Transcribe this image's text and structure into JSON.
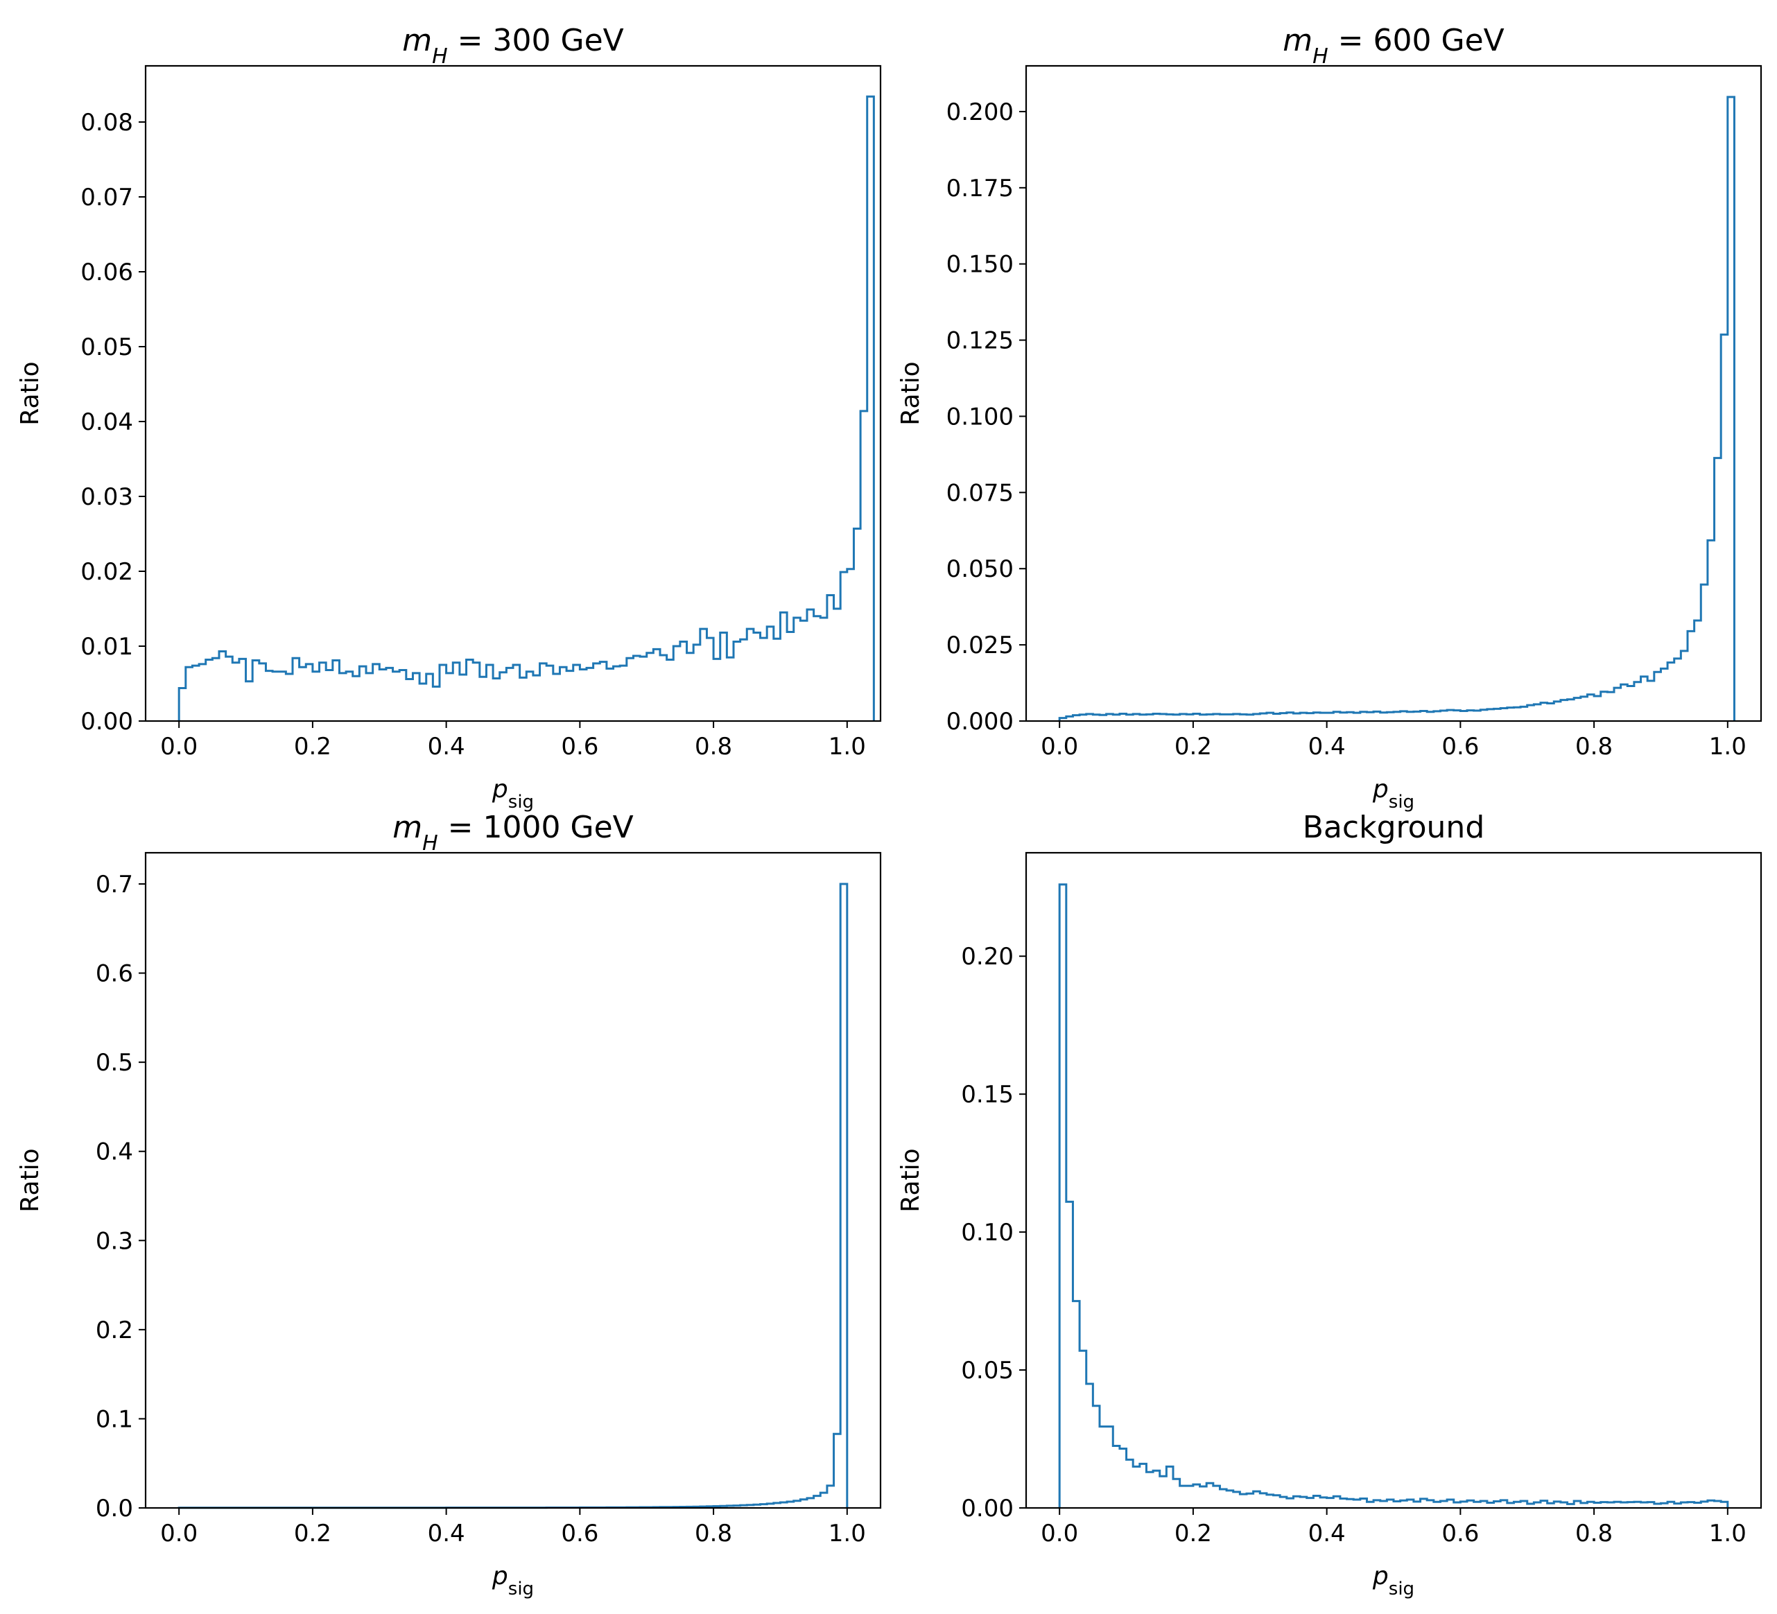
{
  "colors": {
    "series": "#1f77b4"
  },
  "chart_data": [
    {
      "type": "histogram",
      "title_prefix": "m",
      "title_subscript": "H",
      "title_suffix": " =  300 GeV",
      "xlabel_main": "p",
      "xlabel_sub": "sig",
      "ylabel": "Ratio",
      "xlim": [
        -0.05,
        1.05
      ],
      "ylim": [
        0,
        0.0875
      ],
      "xticks": [
        "0.0",
        "0.2",
        "0.4",
        "0.6",
        "0.8",
        "1.0"
      ],
      "yticks": [
        "0.00",
        "0.01",
        "0.02",
        "0.03",
        "0.04",
        "0.05",
        "0.06",
        "0.07",
        "0.08"
      ],
      "bin_start": 0.0,
      "bin_width": 0.01,
      "values": [
        0.0044,
        0.0072,
        0.0074,
        0.0076,
        0.0082,
        0.0084,
        0.0093,
        0.0086,
        0.0078,
        0.0083,
        0.0053,
        0.0081,
        0.0077,
        0.0067,
        0.0066,
        0.0066,
        0.0063,
        0.0084,
        0.0072,
        0.0076,
        0.0066,
        0.0078,
        0.0068,
        0.0081,
        0.0064,
        0.0066,
        0.006,
        0.0073,
        0.0064,
        0.0076,
        0.0069,
        0.0071,
        0.0066,
        0.0068,
        0.0056,
        0.0064,
        0.005,
        0.0063,
        0.0046,
        0.0075,
        0.0064,
        0.0078,
        0.0062,
        0.0082,
        0.0078,
        0.0059,
        0.0075,
        0.0057,
        0.0065,
        0.0071,
        0.0075,
        0.0058,
        0.0066,
        0.0061,
        0.0077,
        0.0074,
        0.0063,
        0.0072,
        0.0067,
        0.0075,
        0.0069,
        0.0071,
        0.0077,
        0.0079,
        0.007,
        0.0073,
        0.0074,
        0.0084,
        0.0087,
        0.0086,
        0.0091,
        0.0096,
        0.0088,
        0.0082,
        0.01,
        0.0106,
        0.0091,
        0.0102,
        0.0123,
        0.0111,
        0.0083,
        0.0118,
        0.0085,
        0.0106,
        0.0109,
        0.0123,
        0.0118,
        0.0111,
        0.0126,
        0.011,
        0.0145,
        0.0119,
        0.0138,
        0.0134,
        0.0149,
        0.014,
        0.0138,
        0.0168,
        0.015,
        0.0199,
        0.0203,
        0.0257,
        0.0414,
        0.0834
      ]
    },
    {
      "type": "histogram",
      "title_prefix": "m",
      "title_subscript": "H",
      "title_suffix": " =  600 GeV",
      "xlabel_main": "p",
      "xlabel_sub": "sig",
      "ylabel": "Ratio",
      "xlim": [
        -0.05,
        1.05
      ],
      "ylim": [
        0,
        0.215
      ],
      "xticks": [
        "0.0",
        "0.2",
        "0.4",
        "0.6",
        "0.8",
        "1.0"
      ],
      "yticks": [
        "0.000",
        "0.025",
        "0.050",
        "0.075",
        "0.100",
        "0.125",
        "0.150",
        "0.175",
        "0.200"
      ],
      "bin_start": 0.0,
      "bin_width": 0.01,
      "values": [
        0.001,
        0.0015,
        0.0019,
        0.0021,
        0.0023,
        0.0021,
        0.002,
        0.0023,
        0.0021,
        0.0024,
        0.0021,
        0.0023,
        0.0021,
        0.0022,
        0.0024,
        0.0023,
        0.0022,
        0.0021,
        0.0023,
        0.0022,
        0.0024,
        0.0021,
        0.0022,
        0.0023,
        0.0022,
        0.0022,
        0.0023,
        0.0022,
        0.0021,
        0.0023,
        0.0025,
        0.0027,
        0.0024,
        0.0026,
        0.0028,
        0.0025,
        0.0027,
        0.0026,
        0.0028,
        0.0027,
        0.0027,
        0.003,
        0.0028,
        0.0029,
        0.0027,
        0.003,
        0.0029,
        0.0031,
        0.0028,
        0.0029,
        0.003,
        0.0032,
        0.003,
        0.0031,
        0.0033,
        0.003,
        0.0032,
        0.0034,
        0.0036,
        0.0035,
        0.0033,
        0.0035,
        0.0034,
        0.0037,
        0.0039,
        0.004,
        0.0042,
        0.0044,
        0.0045,
        0.0047,
        0.0052,
        0.0055,
        0.006,
        0.0058,
        0.0064,
        0.0069,
        0.0071,
        0.0076,
        0.008,
        0.0087,
        0.0082,
        0.0096,
        0.0095,
        0.0109,
        0.012,
        0.0115,
        0.0128,
        0.0146,
        0.0132,
        0.0161,
        0.0172,
        0.0192,
        0.0205,
        0.023,
        0.0295,
        0.033,
        0.0448,
        0.0593,
        0.0863,
        0.1268,
        0.2048
      ]
    },
    {
      "type": "histogram",
      "title_prefix": "m",
      "title_subscript": "H",
      "title_suffix": " =  1000 GeV",
      "xlabel_main": "p",
      "xlabel_sub": "sig",
      "ylabel": "Ratio",
      "xlim": [
        -0.05,
        1.05
      ],
      "ylim": [
        0,
        0.735
      ],
      "xticks": [
        "0.0",
        "0.2",
        "0.4",
        "0.6",
        "0.8",
        "1.0"
      ],
      "yticks": [
        "0.0",
        "0.1",
        "0.2",
        "0.3",
        "0.4",
        "0.5",
        "0.6",
        "0.7"
      ],
      "bin_start": 0.0,
      "bin_width": 0.01,
      "values": [
        0.0002,
        0.0002,
        0.0002,
        0.0002,
        0.0002,
        0.0002,
        0.0002,
        0.0002,
        0.0002,
        0.0002,
        0.0002,
        0.0002,
        0.0002,
        0.0002,
        0.0002,
        0.0002,
        0.0002,
        0.0002,
        0.0002,
        0.0002,
        0.0002,
        0.0002,
        0.0002,
        0.0002,
        0.0002,
        0.0002,
        0.0002,
        0.0002,
        0.0002,
        0.0002,
        0.0002,
        0.0002,
        0.0002,
        0.0002,
        0.0002,
        0.0002,
        0.0002,
        0.0002,
        0.0002,
        0.0002,
        0.0003,
        0.0003,
        0.0003,
        0.0003,
        0.0003,
        0.0003,
        0.0003,
        0.0003,
        0.0003,
        0.0003,
        0.0003,
        0.0003,
        0.0003,
        0.0003,
        0.0003,
        0.0004,
        0.0004,
        0.0004,
        0.0004,
        0.0004,
        0.0005,
        0.0005,
        0.0005,
        0.0005,
        0.0006,
        0.0006,
        0.0006,
        0.0007,
        0.0007,
        0.0008,
        0.0008,
        0.0009,
        0.001,
        0.001,
        0.0011,
        0.0012,
        0.0013,
        0.0014,
        0.0016,
        0.0017,
        0.0019,
        0.0021,
        0.0024,
        0.0026,
        0.003,
        0.0033,
        0.0037,
        0.0042,
        0.0048,
        0.0055,
        0.0062,
        0.007,
        0.008,
        0.0095,
        0.011,
        0.0135,
        0.017,
        0.025,
        0.083,
        0.7
      ]
    },
    {
      "type": "histogram",
      "title_prefix": "",
      "title_subscript": "",
      "title_suffix": "Background",
      "xlabel_main": "p",
      "xlabel_sub": "sig",
      "ylabel": "Ratio",
      "xlim": [
        -0.05,
        1.05
      ],
      "ylim": [
        0,
        0.2375
      ],
      "xticks": [
        "0.0",
        "0.2",
        "0.4",
        "0.6",
        "0.8",
        "1.0"
      ],
      "yticks": [
        "0.00",
        "0.05",
        "0.10",
        "0.15",
        "0.20"
      ],
      "bin_start": 0.0,
      "bin_width": 0.01,
      "values": [
        0.226,
        0.111,
        0.075,
        0.057,
        0.045,
        0.037,
        0.0295,
        0.0295,
        0.0225,
        0.0215,
        0.0175,
        0.015,
        0.016,
        0.013,
        0.0135,
        0.0115,
        0.015,
        0.0105,
        0.008,
        0.008,
        0.0085,
        0.0078,
        0.009,
        0.008,
        0.0068,
        0.0063,
        0.0058,
        0.005,
        0.0052,
        0.006,
        0.0053,
        0.0048,
        0.0046,
        0.004,
        0.0035,
        0.0042,
        0.004,
        0.0036,
        0.0044,
        0.0038,
        0.0036,
        0.0042,
        0.0034,
        0.0032,
        0.003,
        0.0034,
        0.0022,
        0.0028,
        0.0025,
        0.003,
        0.0024,
        0.0027,
        0.003,
        0.0023,
        0.0033,
        0.0028,
        0.0022,
        0.0025,
        0.003,
        0.002,
        0.0023,
        0.0027,
        0.0022,
        0.0025,
        0.0019,
        0.0024,
        0.0028,
        0.0018,
        0.0022,
        0.0025,
        0.0015,
        0.002,
        0.0026,
        0.0017,
        0.0023,
        0.002,
        0.0014,
        0.0025,
        0.0018,
        0.0022,
        0.0019,
        0.0021,
        0.002,
        0.0022,
        0.002,
        0.0021,
        0.0022,
        0.002,
        0.0021,
        0.0015,
        0.0017,
        0.0022,
        0.0016,
        0.002,
        0.0021,
        0.0019,
        0.0023,
        0.0027,
        0.0025,
        0.0022
      ]
    }
  ]
}
